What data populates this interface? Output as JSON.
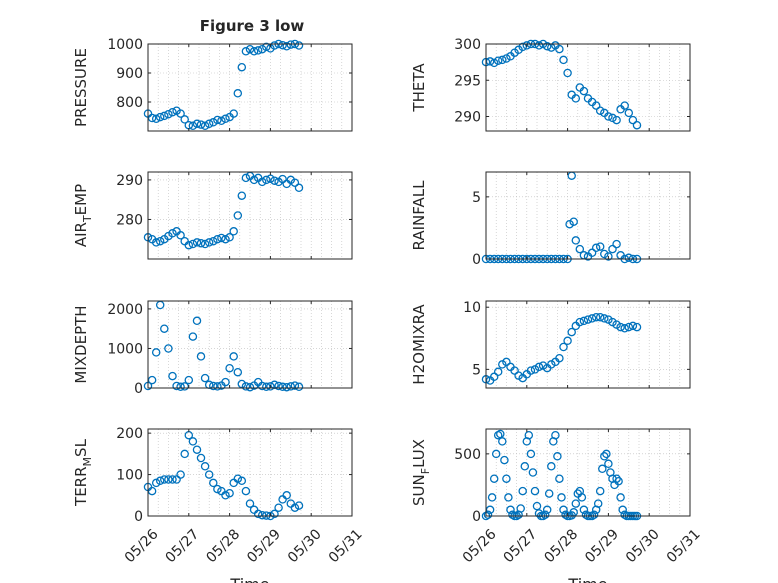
{
  "figure": {
    "title": "Figure 3 low"
  },
  "colors": {
    "marker": "#0072BD",
    "axis": "#262626",
    "grid": "#bdbdbd"
  },
  "chart_data": [
    {
      "type": "scatter",
      "id": "pressure",
      "title": "Figure 3 low",
      "ylabel": "PRESSURE",
      "xlabel": "",
      "xlim": [
        0,
        5
      ],
      "ylim": [
        700,
        1000
      ],
      "yticks": [
        800,
        900,
        1000
      ],
      "xticks": [
        "05/26",
        "05/27",
        "05/28",
        "05/29",
        "05/30",
        "05/31"
      ],
      "show_xticklabels": false,
      "grid": true,
      "marker": "open-circle",
      "x": [
        0,
        0.1,
        0.2,
        0.3,
        0.4,
        0.5,
        0.6,
        0.7,
        0.8,
        0.9,
        1,
        1.1,
        1.2,
        1.3,
        1.4,
        1.5,
        1.6,
        1.7,
        1.8,
        1.9,
        2,
        2.1,
        2.2,
        2.3,
        2.4,
        2.5,
        2.6,
        2.7,
        2.8,
        2.9,
        3,
        3.1,
        3.2,
        3.3,
        3.4,
        3.5,
        3.6,
        3.7
      ],
      "y": [
        760,
        745,
        742,
        748,
        752,
        758,
        765,
        770,
        760,
        740,
        720,
        718,
        725,
        722,
        718,
        725,
        730,
        738,
        735,
        742,
        748,
        760,
        830,
        920,
        975,
        982,
        975,
        978,
        982,
        990,
        985,
        995,
        1000,
        996,
        992,
        998,
        1000,
        995
      ]
    },
    {
      "type": "scatter",
      "id": "theta",
      "ylabel": "THETA",
      "xlabel": "",
      "xlim": [
        0,
        5
      ],
      "ylim": [
        288,
        300
      ],
      "yticks": [
        290,
        295,
        300
      ],
      "xticks": [
        "05/26",
        "05/27",
        "05/28",
        "05/29",
        "05/30",
        "05/31"
      ],
      "show_xticklabels": false,
      "grid": true,
      "marker": "open-circle",
      "x": [
        0,
        0.1,
        0.2,
        0.3,
        0.4,
        0.5,
        0.6,
        0.7,
        0.8,
        0.9,
        1,
        1.1,
        1.2,
        1.3,
        1.4,
        1.5,
        1.6,
        1.7,
        1.8,
        1.9,
        2,
        2.1,
        2.2,
        2.3,
        2.4,
        2.5,
        2.6,
        2.7,
        2.8,
        2.9,
        3,
        3.1,
        3.2,
        3.3,
        3.4,
        3.5,
        3.6,
        3.7
      ],
      "y": [
        297.5,
        297.6,
        297.4,
        297.7,
        297.8,
        298,
        298.3,
        298.8,
        299.2,
        299.6,
        299.8,
        300,
        300,
        299.8,
        300,
        299.7,
        299.5,
        299.8,
        299.3,
        297.8,
        296,
        293,
        292.5,
        294,
        293.5,
        292.5,
        292,
        291.5,
        290.8,
        290.5,
        290,
        289.8,
        289.5,
        291,
        291.5,
        290.5,
        289.5,
        288.8
      ]
    },
    {
      "type": "scatter",
      "id": "air-temp",
      "ylabel": "AIR_TEMP",
      "xlabel": "",
      "xlim": [
        0,
        5
      ],
      "ylim": [
        270,
        292
      ],
      "yticks": [
        280,
        290
      ],
      "xticks": [
        "05/26",
        "05/27",
        "05/28",
        "05/29",
        "05/30",
        "05/31"
      ],
      "show_xticklabels": false,
      "grid": true,
      "marker": "open-circle",
      "x": [
        0,
        0.1,
        0.2,
        0.3,
        0.4,
        0.5,
        0.6,
        0.7,
        0.8,
        0.9,
        1,
        1.1,
        1.2,
        1.3,
        1.4,
        1.5,
        1.6,
        1.7,
        1.8,
        1.9,
        2,
        2.1,
        2.2,
        2.3,
        2.4,
        2.5,
        2.6,
        2.7,
        2.8,
        2.9,
        3,
        3.1,
        3.2,
        3.3,
        3.4,
        3.5,
        3.6,
        3.7
      ],
      "y": [
        275.5,
        275,
        274.2,
        274.5,
        275,
        275.8,
        276.5,
        277,
        276,
        274.5,
        273.5,
        273.8,
        274.2,
        274,
        273.8,
        274.2,
        274.5,
        275,
        275.3,
        275,
        275.5,
        277,
        281,
        286,
        290.5,
        291,
        290,
        290.5,
        289.5,
        290,
        290.3,
        289.8,
        289.5,
        290.2,
        289,
        290,
        289.3,
        288
      ]
    },
    {
      "type": "scatter",
      "id": "rainfall",
      "ylabel": "RAINFALL",
      "xlabel": "",
      "xlim": [
        0,
        5
      ],
      "ylim": [
        0,
        7
      ],
      "yticks": [
        0,
        5
      ],
      "xticks": [
        "05/26",
        "05/27",
        "05/28",
        "05/29",
        "05/30",
        "05/31"
      ],
      "show_xticklabels": false,
      "grid": true,
      "marker": "open-circle",
      "x": [
        0,
        0.1,
        0.2,
        0.3,
        0.4,
        0.5,
        0.6,
        0.7,
        0.8,
        0.9,
        1,
        1.1,
        1.2,
        1.3,
        1.4,
        1.5,
        1.6,
        1.7,
        1.8,
        1.9,
        2,
        2.05,
        2.1,
        2.15,
        2.2,
        2.3,
        2.4,
        2.5,
        2.6,
        2.7,
        2.8,
        2.9,
        3,
        3.1,
        3.2,
        3.3,
        3.4,
        3.5,
        3.6,
        3.7
      ],
      "y": [
        0,
        0,
        0,
        0,
        0,
        0,
        0,
        0,
        0,
        0,
        0,
        0,
        0,
        0,
        0,
        0,
        0,
        0,
        0,
        0,
        0,
        2.8,
        6.7,
        3,
        1.5,
        0.8,
        0.3,
        0.2,
        0.5,
        0.9,
        1,
        0.4,
        0.2,
        0.8,
        1.2,
        0.3,
        0,
        0.1,
        0,
        0
      ]
    },
    {
      "type": "scatter",
      "id": "mixdepth",
      "ylabel": "MIXDEPTH",
      "xlabel": "",
      "xlim": [
        0,
        5
      ],
      "ylim": [
        0,
        2200
      ],
      "yticks": [
        0,
        1000,
        2000
      ],
      "xticks": [
        "05/26",
        "05/27",
        "05/28",
        "05/29",
        "05/30",
        "05/31"
      ],
      "show_xticklabels": false,
      "grid": true,
      "marker": "open-circle",
      "x": [
        0,
        0.1,
        0.2,
        0.3,
        0.4,
        0.5,
        0.6,
        0.7,
        0.8,
        0.9,
        1,
        1.1,
        1.2,
        1.3,
        1.4,
        1.5,
        1.6,
        1.7,
        1.8,
        1.9,
        2,
        2.1,
        2.2,
        2.3,
        2.4,
        2.5,
        2.6,
        2.7,
        2.8,
        2.9,
        3,
        3.1,
        3.2,
        3.3,
        3.4,
        3.5,
        3.6,
        3.7
      ],
      "y": [
        50,
        200,
        900,
        2100,
        1500,
        1000,
        300,
        50,
        30,
        40,
        200,
        1300,
        1700,
        800,
        250,
        80,
        50,
        40,
        60,
        150,
        500,
        800,
        400,
        100,
        40,
        20,
        60,
        150,
        50,
        30,
        40,
        80,
        50,
        30,
        20,
        40,
        60,
        30
      ]
    },
    {
      "type": "scatter",
      "id": "h2omixra",
      "ylabel": "H2OMIXRA",
      "xlabel": "",
      "xlim": [
        0,
        5
      ],
      "ylim": [
        3.5,
        10.5
      ],
      "yticks": [
        5,
        10
      ],
      "xticks": [
        "05/26",
        "05/27",
        "05/28",
        "05/29",
        "05/30",
        "05/31"
      ],
      "show_xticklabels": false,
      "grid": true,
      "marker": "open-circle",
      "x": [
        0,
        0.1,
        0.2,
        0.3,
        0.4,
        0.5,
        0.6,
        0.7,
        0.8,
        0.9,
        1,
        1.1,
        1.2,
        1.3,
        1.4,
        1.5,
        1.6,
        1.7,
        1.8,
        1.9,
        2,
        2.1,
        2.2,
        2.3,
        2.4,
        2.5,
        2.6,
        2.7,
        2.8,
        2.9,
        3,
        3.1,
        3.2,
        3.3,
        3.4,
        3.5,
        3.6,
        3.7
      ],
      "y": [
        4.2,
        4.1,
        4.4,
        4.8,
        5.4,
        5.6,
        5.2,
        4.9,
        4.5,
        4.3,
        4.6,
        4.9,
        5,
        5.2,
        5.3,
        5.1,
        5.4,
        5.6,
        5.9,
        6.8,
        7.3,
        8,
        8.5,
        8.8,
        8.9,
        9,
        9.1,
        9.2,
        9.2,
        9.1,
        9,
        8.8,
        8.6,
        8.4,
        8.3,
        8.4,
        8.5,
        8.4
      ]
    },
    {
      "type": "scatter",
      "id": "terr-msl",
      "ylabel": "TERR_MSL",
      "xlabel": "Time",
      "xlim": [
        0,
        5
      ],
      "ylim": [
        0,
        210
      ],
      "yticks": [
        0,
        100,
        200
      ],
      "xticks": [
        "05/26",
        "05/27",
        "05/28",
        "05/29",
        "05/30",
        "05/31"
      ],
      "show_xticklabels": true,
      "grid": true,
      "marker": "open-circle",
      "x": [
        0,
        0.1,
        0.2,
        0.3,
        0.4,
        0.5,
        0.6,
        0.7,
        0.8,
        0.9,
        1,
        1.1,
        1.2,
        1.3,
        1.4,
        1.5,
        1.6,
        1.7,
        1.8,
        1.9,
        2,
        2.1,
        2.2,
        2.3,
        2.4,
        2.5,
        2.6,
        2.7,
        2.8,
        2.9,
        3,
        3.1,
        3.2,
        3.3,
        3.4,
        3.5,
        3.6,
        3.7
      ],
      "y": [
        70,
        60,
        80,
        85,
        88,
        88,
        88,
        88,
        100,
        150,
        195,
        180,
        160,
        140,
        120,
        100,
        80,
        65,
        60,
        50,
        55,
        80,
        90,
        85,
        60,
        30,
        15,
        5,
        2,
        1,
        0,
        5,
        20,
        40,
        50,
        30,
        20,
        25
      ]
    },
    {
      "type": "scatter",
      "id": "sun-flux",
      "ylabel": "SUN_FLUX",
      "xlabel": "Time",
      "xlim": [
        0,
        5
      ],
      "ylim": [
        0,
        700
      ],
      "yticks": [
        0,
        500
      ],
      "xticks": [
        "05/26",
        "05/27",
        "05/28",
        "05/29",
        "05/30",
        "05/31"
      ],
      "show_xticklabels": true,
      "grid": true,
      "marker": "open-circle",
      "x": [
        0,
        0.05,
        0.1,
        0.15,
        0.2,
        0.25,
        0.3,
        0.35,
        0.4,
        0.45,
        0.5,
        0.55,
        0.6,
        0.65,
        0.7,
        0.75,
        0.8,
        0.85,
        0.9,
        0.95,
        1,
        1.05,
        1.1,
        1.15,
        1.2,
        1.25,
        1.3,
        1.35,
        1.4,
        1.45,
        1.5,
        1.55,
        1.6,
        1.65,
        1.7,
        1.75,
        1.8,
        1.85,
        1.9,
        1.95,
        2,
        2.05,
        2.1,
        2.15,
        2.2,
        2.25,
        2.3,
        2.35,
        2.4,
        2.45,
        2.5,
        2.55,
        2.6,
        2.65,
        2.7,
        2.75,
        2.8,
        2.85,
        2.9,
        2.95,
        3,
        3.05,
        3.1,
        3.15,
        3.2,
        3.25,
        3.3,
        3.35,
        3.4,
        3.45,
        3.5,
        3.55,
        3.6,
        3.65,
        3.7
      ],
      "y": [
        0,
        10,
        50,
        150,
        300,
        500,
        650,
        660,
        600,
        450,
        300,
        150,
        50,
        10,
        0,
        0,
        10,
        60,
        200,
        400,
        600,
        650,
        500,
        350,
        200,
        80,
        20,
        0,
        0,
        10,
        50,
        180,
        400,
        600,
        650,
        480,
        300,
        150,
        50,
        10,
        0,
        0,
        5,
        30,
        100,
        180,
        200,
        150,
        50,
        10,
        0,
        0,
        0,
        10,
        50,
        100,
        200,
        380,
        480,
        500,
        420,
        350,
        300,
        250,
        300,
        280,
        150,
        50,
        10,
        0,
        0,
        0,
        0,
        0,
        0
      ]
    }
  ]
}
